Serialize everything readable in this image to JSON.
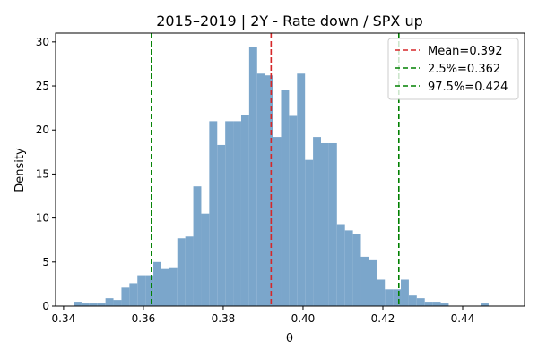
{
  "chart_data": {
    "type": "bar",
    "title": "2015–2019 | 2Y - Rate down / SPX up",
    "xlabel": "θ",
    "ylabel": "Density",
    "xlim": [
      0.338,
      0.4555
    ],
    "ylim": [
      0,
      31
    ],
    "grid": false,
    "legend_position": "top-right",
    "xticks": [
      0.34,
      0.36,
      0.38,
      0.4,
      0.42,
      0.44
    ],
    "xtick_labels": [
      "0.34",
      "0.36",
      "0.38",
      "0.40",
      "0.42",
      "0.44"
    ],
    "yticks": [
      0,
      5,
      10,
      15,
      20,
      25,
      30
    ],
    "ytick_labels": [
      "0",
      "5",
      "10",
      "15",
      "20",
      "25",
      "30"
    ],
    "bins": {
      "start": 0.3425,
      "width": 0.002,
      "density": [
        0.5,
        0.3,
        0.3,
        0.3,
        0.9,
        0.7,
        2.1,
        2.6,
        3.5,
        3.5,
        5.0,
        4.2,
        4.4,
        7.7,
        7.9,
        13.6,
        10.5,
        21.0,
        18.3,
        21.0,
        21.0,
        21.7,
        29.4,
        26.4,
        26.2,
        19.2,
        24.5,
        21.6,
        26.4,
        16.6,
        19.2,
        18.5,
        18.5,
        9.3,
        8.6,
        8.2,
        5.6,
        5.3,
        3.0,
        1.9,
        1.9,
        3.0,
        1.2,
        0.9,
        0.5,
        0.5,
        0.3,
        0.0,
        0.0,
        0.0,
        0.0,
        0.3
      ]
    },
    "bar_color": "#7BA6CB",
    "vlines": [
      {
        "x": 0.392,
        "color": "#d62728",
        "label": "Mean=0.392"
      },
      {
        "x": 0.362,
        "color": "#008000",
        "label": "2.5%=0.362"
      },
      {
        "x": 0.424,
        "color": "#008000",
        "label": "97.5%=0.424"
      }
    ]
  }
}
